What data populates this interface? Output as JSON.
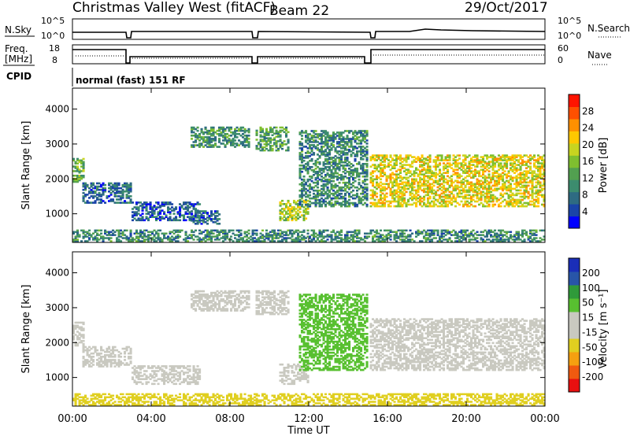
{
  "header": {
    "station": "Christmas Valley West (fitACF)",
    "beam": "Beam 22",
    "date": "29/Oct/2017"
  },
  "top_panels": {
    "noise_left_label": "N.Sky",
    "noise_right_label": "N.Search",
    "noise_ticks": [
      "10^5",
      "10^0"
    ],
    "freq_label_line1": "Freq.",
    "freq_label_line2": "[MHz]",
    "freq_ticks": [
      "18",
      "8"
    ],
    "nave_label": "Nave",
    "nave_ticks": [
      "60",
      "0"
    ],
    "cpid_label": "CPID",
    "cpid_text": "normal (fast) 151 RF"
  },
  "x_axis": {
    "label": "Time UT",
    "ticks": [
      "00:00",
      "04:00",
      "08:00",
      "12:00",
      "16:00",
      "20:00",
      "00:00"
    ]
  },
  "colors": {
    "power_scale": [
      "#0000ff",
      "#1a44a8",
      "#2e6b82",
      "#3c8c6e",
      "#52a050",
      "#7fbf2f",
      "#c8d420",
      "#ffc800",
      "#ff9000",
      "#ff5000",
      "#ff1400"
    ],
    "velocity_scale": [
      "#e81010",
      "#f05a10",
      "#f5a010",
      "#e0cf20",
      "#c9c9c0",
      "#c9c9c0",
      "#58c030",
      "#2f9a3a",
      "#2855a8",
      "#1a2eb8"
    ]
  },
  "chart_data": [
    {
      "type": "heatmap",
      "panel": "power",
      "ylabel": "Slant Range [km]",
      "xlabel": "",
      "ylim": [
        180,
        4600
      ],
      "x_range_hours": [
        0,
        24
      ],
      "colorbar": {
        "label": "Power [dB]",
        "ticks": [
          "28",
          "24",
          "20",
          "16",
          "12",
          "8",
          "4"
        ],
        "range": [
          0,
          32
        ]
      },
      "regions": [
        {
          "t": [
            0.0,
            0.6
          ],
          "r": [
            1900,
            2600
          ],
          "value": 14
        },
        {
          "t": [
            0.5,
            3.0
          ],
          "r": [
            1300,
            1900
          ],
          "value": 7
        },
        {
          "t": [
            3.0,
            6.5
          ],
          "r": [
            800,
            1350
          ],
          "value": 6
        },
        {
          "t": [
            6.0,
            7.5
          ],
          "r": [
            700,
            1100
          ],
          "value": 7
        },
        {
          "t": [
            6.0,
            9.0
          ],
          "r": [
            2900,
            3500
          ],
          "value": 11
        },
        {
          "t": [
            9.3,
            11.0
          ],
          "r": [
            2800,
            3500
          ],
          "value": 12
        },
        {
          "t": [
            10.5,
            12.0
          ],
          "r": [
            800,
            1400
          ],
          "value": 18
        },
        {
          "t": [
            11.5,
            15.0
          ],
          "r": [
            1200,
            3400
          ],
          "value": 10
        },
        {
          "t": [
            15.1,
            24.0
          ],
          "r": [
            1200,
            2700
          ],
          "value": 20
        },
        {
          "t": [
            0.0,
            24.0
          ],
          "r": [
            200,
            550
          ],
          "value": 10
        }
      ]
    },
    {
      "type": "heatmap",
      "panel": "velocity",
      "ylabel": "Slant Range [km]",
      "xlabel": "Time UT",
      "ylim": [
        180,
        4600
      ],
      "x_range_hours": [
        0,
        24
      ],
      "colorbar": {
        "label": "Velocity [m s⁻¹]",
        "ticks": [
          "200",
          "100",
          "50",
          "15",
          "-15",
          "-50",
          "-100",
          "-200"
        ],
        "range": [
          -250,
          250
        ]
      },
      "regions": [
        {
          "t": [
            0.0,
            0.6
          ],
          "r": [
            1900,
            2600
          ],
          "value": 0
        },
        {
          "t": [
            0.5,
            3.0
          ],
          "r": [
            1300,
            1900
          ],
          "value": 40
        },
        {
          "t": [
            3.0,
            6.5
          ],
          "r": [
            800,
            1350
          ],
          "value": 35
        },
        {
          "t": [
            6.0,
            9.0
          ],
          "r": [
            2900,
            3500
          ],
          "value": 0
        },
        {
          "t": [
            9.3,
            11.0
          ],
          "r": [
            2800,
            3500
          ],
          "value": 0
        },
        {
          "t": [
            10.5,
            12.0
          ],
          "r": [
            800,
            1400
          ],
          "value": 0
        },
        {
          "t": [
            11.5,
            15.0
          ],
          "r": [
            1200,
            3400
          ],
          "value": 60
        },
        {
          "t": [
            15.1,
            24.0
          ],
          "r": [
            1200,
            2700
          ],
          "value": 0
        },
        {
          "t": [
            0.0,
            24.0
          ],
          "r": [
            200,
            550
          ],
          "value": -60
        }
      ]
    }
  ]
}
